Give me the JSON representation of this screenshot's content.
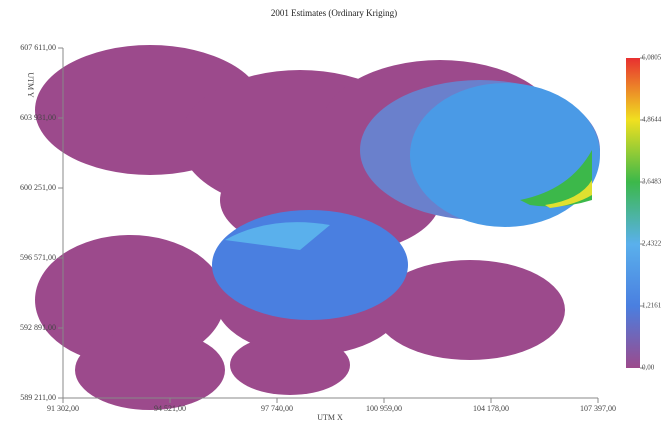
{
  "chart_data": {
    "type": "map",
    "title": "2001 Estimates (Ordinary Kriging)",
    "xlabel": "UTM X",
    "ylabel": "UTM Y",
    "xlim": [
      91302,
      107397
    ],
    "ylim": [
      589211,
      607611
    ],
    "xticks": [
      {
        "value": 91302,
        "label": "91 302,00"
      },
      {
        "value": 94521,
        "label": "94 521,00"
      },
      {
        "value": 97740,
        "label": "97 740,00"
      },
      {
        "value": 100959,
        "label": "100 959,00"
      },
      {
        "value": 104178,
        "label": "104 178,00"
      },
      {
        "value": 107397,
        "label": "107 397,00"
      }
    ],
    "yticks": [
      {
        "value": 589211,
        "label": "589 211,00"
      },
      {
        "value": 592891,
        "label": "592 891,00"
      },
      {
        "value": 596571,
        "label": "596 571,00"
      },
      {
        "value": 600251,
        "label": "600 251,00"
      },
      {
        "value": 603931,
        "label": "603 931,00"
      },
      {
        "value": 607611,
        "label": "607 611,00"
      }
    ],
    "colorbar": {
      "lim": [
        0,
        6.0805
      ],
      "colors": [
        "#9c4a8c",
        "#4a7fe0",
        "#5ab0ec",
        "#3cb84a",
        "#f0e020",
        "#e83030"
      ],
      "ticks": [
        {
          "value": 0,
          "label": "0,00"
        },
        {
          "value": 1.2161,
          "label": "1,2161"
        },
        {
          "value": 2.4322,
          "label": "2,4322"
        },
        {
          "value": 3.6483,
          "label": "3,6483"
        },
        {
          "value": 4.8644,
          "label": "4,8644"
        },
        {
          "value": 6.0805,
          "label": "6,0805"
        }
      ]
    }
  }
}
